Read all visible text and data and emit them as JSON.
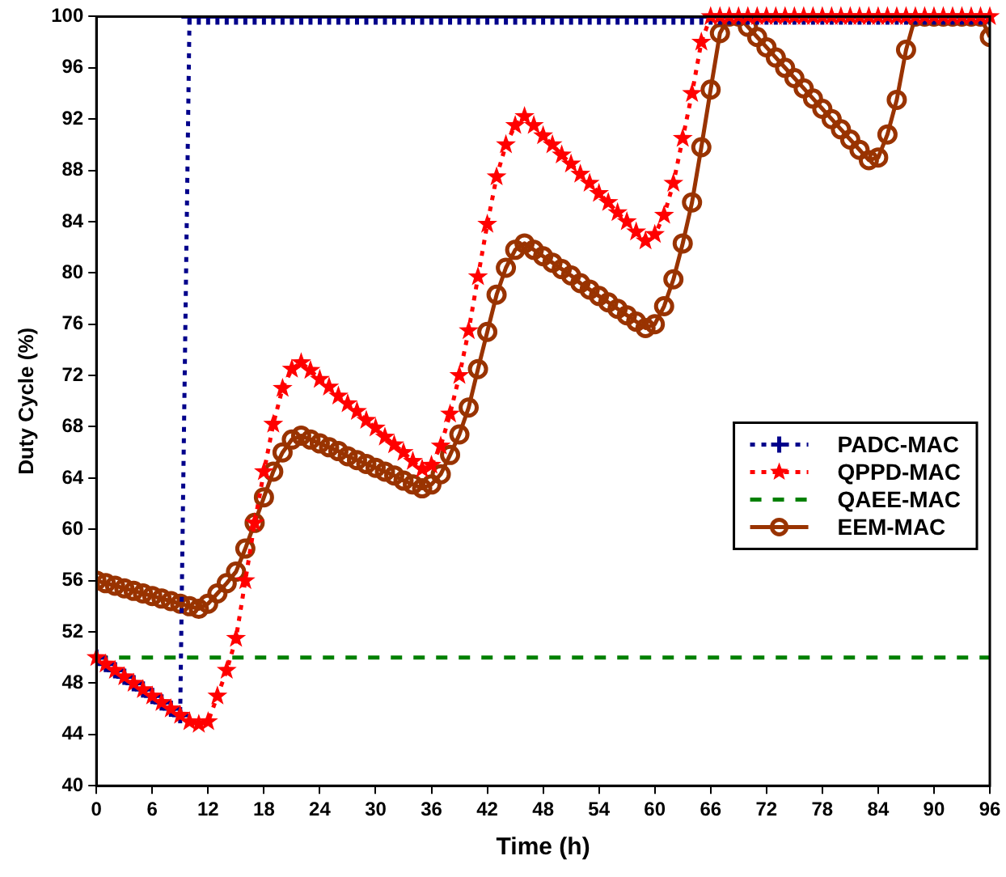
{
  "chart_data": {
    "type": "line",
    "xlabel": "Time (h)",
    "ylabel": "Duty Cycle (%)",
    "x": [
      0,
      1,
      2,
      3,
      4,
      5,
      6,
      7,
      8,
      9,
      10,
      11,
      12,
      13,
      14,
      15,
      16,
      17,
      18,
      19,
      20,
      21,
      22,
      23,
      24,
      25,
      26,
      27,
      28,
      29,
      30,
      31,
      32,
      33,
      34,
      35,
      36,
      37,
      38,
      39,
      40,
      41,
      42,
      43,
      44,
      45,
      46,
      47,
      48,
      49,
      50,
      51,
      52,
      53,
      54,
      55,
      56,
      57,
      58,
      59,
      60,
      61,
      62,
      63,
      64,
      65,
      66,
      67,
      68,
      69,
      70,
      71,
      72,
      73,
      74,
      75,
      76,
      77,
      78,
      79,
      80,
      81,
      82,
      83,
      84,
      85,
      86,
      87,
      88,
      89,
      90,
      91,
      92,
      93,
      94,
      95,
      96
    ],
    "xlim": [
      0,
      96
    ],
    "xticks": [
      0,
      6,
      12,
      18,
      24,
      30,
      36,
      42,
      48,
      54,
      60,
      66,
      72,
      78,
      84,
      90,
      96
    ],
    "ylim": [
      40,
      100
    ],
    "yticks": [
      40,
      44,
      48,
      52,
      56,
      60,
      64,
      68,
      72,
      76,
      80,
      84,
      88,
      92,
      96,
      100
    ],
    "grid": false,
    "legend": "right",
    "series": [
      {
        "name": "PADC-MAC",
        "color": "#00008b",
        "marker": "cross",
        "line_style": "dotted",
        "values": [
          50,
          49.5,
          49,
          48.5,
          48,
          47.5,
          47,
          46.5,
          46,
          45.5,
          100,
          100,
          100,
          100,
          100,
          100,
          100,
          100,
          100,
          100,
          100,
          100,
          100,
          100,
          100,
          100,
          100,
          100,
          100,
          100,
          100,
          100,
          100,
          100,
          100,
          100,
          100,
          100,
          100,
          100,
          100,
          100,
          100,
          100,
          100,
          100,
          100,
          100,
          100,
          100,
          100,
          100,
          100,
          100,
          100,
          100,
          100,
          100,
          100,
          100,
          100,
          100,
          100,
          100,
          100,
          100,
          100,
          100,
          100,
          100,
          100,
          100,
          100,
          100,
          100,
          100,
          100,
          100,
          100,
          100,
          100,
          100,
          100,
          100,
          100,
          100,
          100,
          100,
          100,
          100,
          100,
          100,
          100,
          100,
          100,
          100,
          100
        ]
      },
      {
        "name": "QPPD-MAC",
        "color": "#ff0000",
        "marker": "star",
        "line_style": "dotted",
        "values": [
          50,
          49.5,
          49,
          48.5,
          48,
          47.5,
          47,
          46.5,
          46,
          45.5,
          45,
          44.8,
          45,
          47,
          49,
          51.5,
          56,
          60.5,
          64.5,
          68.2,
          71,
          72.5,
          73,
          72.4,
          71.7,
          71.1,
          70.4,
          69.8,
          69.2,
          68.5,
          67.9,
          67.2,
          66.6,
          66,
          65.3,
          64.7,
          65,
          66.5,
          69,
          72,
          75.5,
          79.7,
          83.8,
          87.5,
          90,
          91.5,
          92.2,
          91.5,
          90.7,
          90,
          89.2,
          88.5,
          87.7,
          87,
          86.2,
          85.5,
          84.7,
          84,
          83.2,
          82.5,
          83,
          84.5,
          87,
          90.5,
          94,
          98,
          100,
          100,
          100,
          100,
          100,
          100,
          100,
          100,
          100,
          100,
          100,
          100,
          100,
          100,
          100,
          100,
          100,
          100,
          100,
          100,
          100,
          100,
          100,
          100,
          100,
          100,
          100,
          100,
          100,
          100,
          100
        ]
      },
      {
        "name": "QAEE-MAC",
        "color": "#008000",
        "marker": "none",
        "line_style": "dashed",
        "x": [
          0,
          96
        ],
        "values": [
          50,
          50
        ]
      },
      {
        "name": "EEM-MAC",
        "color": "#993300",
        "marker": "circle",
        "line_style": "solid",
        "values": [
          56,
          55.8,
          55.6,
          55.4,
          55.2,
          55,
          54.8,
          54.6,
          54.4,
          54.2,
          54,
          53.8,
          54.2,
          55,
          55.8,
          56.7,
          58.5,
          60.5,
          62.5,
          64.5,
          66,
          67,
          67.3,
          67,
          66.7,
          66.4,
          66.1,
          65.7,
          65.4,
          65.1,
          64.8,
          64.5,
          64.2,
          63.8,
          63.5,
          63.2,
          63.5,
          64.3,
          65.8,
          67.4,
          69.5,
          72.5,
          75.4,
          78.3,
          80.4,
          81.8,
          82.3,
          81.8,
          81.3,
          80.8,
          80.3,
          79.8,
          79.2,
          78.7,
          78.2,
          77.7,
          77.2,
          76.7,
          76.2,
          75.7,
          76,
          77.4,
          79.5,
          82.3,
          85.5,
          89.8,
          94.3,
          98.7,
          100,
          100,
          99.2,
          98.4,
          97.6,
          96.8,
          96,
          95.2,
          94.4,
          93.6,
          92.8,
          92,
          91.2,
          90.4,
          89.6,
          88.8,
          89,
          90.8,
          93.5,
          97.4,
          100,
          100,
          100,
          100,
          100,
          100,
          100,
          100,
          98.4
        ]
      }
    ]
  }
}
